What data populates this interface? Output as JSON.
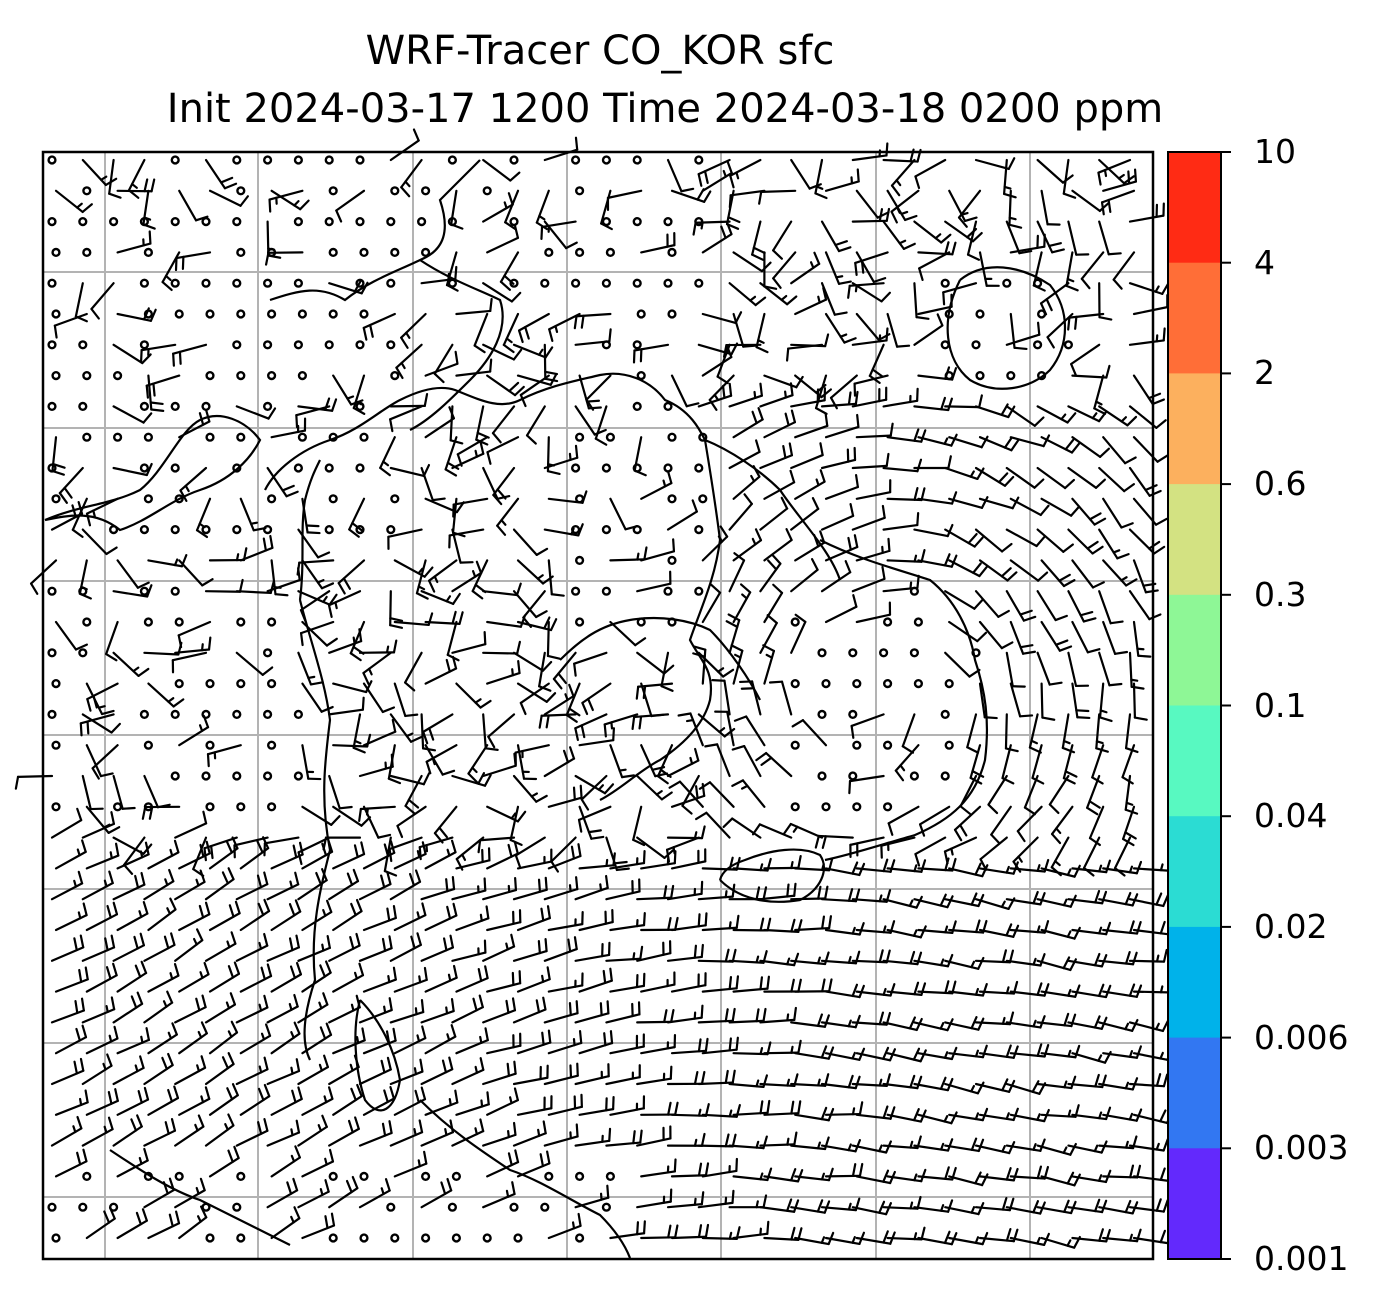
{
  "title": {
    "line1": "WRF-Tracer CO_KOR sfc",
    "line2": "Init 2024-03-17 1200 Time 2024-03-18 0200 ppm"
  },
  "colorbar": {
    "labels": [
      "10",
      "4",
      "2",
      "0.6",
      "0.3",
      "0.1",
      "0.04",
      "0.02",
      "0.006",
      "0.003",
      "0.001"
    ],
    "colors": [
      "#ff2b14",
      "#ff6e37",
      "#fcb05e",
      "#d3e282",
      "#8ef796",
      "#58f9c1",
      "#2bdcd3",
      "#00b2ea",
      "#3277f2",
      "#6329fc"
    ]
  },
  "map": {
    "background": "#ffffff",
    "gridline_color": "#b3b3b3",
    "coastline_color": "#000000",
    "wind_barb_color": "#000000",
    "features": [
      "coastlines",
      "gridlines",
      "wind-barbs",
      "calm-wind-circles"
    ]
  }
}
